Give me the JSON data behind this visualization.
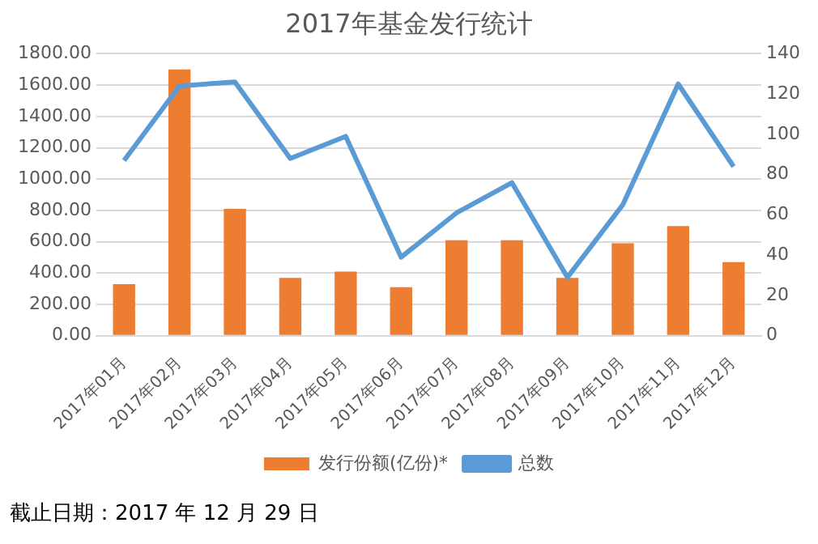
{
  "chart_data": {
    "type": "bar",
    "title": "2017年基金发行统计",
    "categories": [
      "2017年01月",
      "2017年02月",
      "2017年03月",
      "2017年04月",
      "2017年05月",
      "2017年06月",
      "2017年07月",
      "2017年08月",
      "2017年09月",
      "2017年10月",
      "2017年11月",
      "2017年12月"
    ],
    "series": [
      {
        "name": "发行份额(亿份)*",
        "color": "#ed7d31",
        "values": [
          330,
          1700,
          810,
          370,
          410,
          310,
          610,
          610,
          370,
          590,
          700,
          470
        ]
      },
      {
        "name": "总数",
        "type": "line",
        "axis": "y2",
        "color": "#5b9bd5",
        "values": [
          87,
          124,
          126,
          88,
          99,
          39,
          61,
          76,
          29,
          65,
          125,
          84
        ]
      }
    ],
    "ylim": [
      0,
      1800
    ],
    "yticks": [
      {
        "value": 0,
        "label": "0.00"
      },
      {
        "value": 200,
        "label": "200.00"
      },
      {
        "value": 400,
        "label": "400.00"
      },
      {
        "value": 600,
        "label": "600.00"
      },
      {
        "value": 800,
        "label": "800.00"
      },
      {
        "value": 1000,
        "label": "1000.00"
      },
      {
        "value": 1200,
        "label": "1200.00"
      },
      {
        "value": 1400,
        "label": "1400.00"
      },
      {
        "value": 1600,
        "label": "1600.00"
      },
      {
        "value": 1800,
        "label": "1800.00"
      }
    ],
    "y2lim": [
      0,
      140
    ],
    "y2ticks": [
      0,
      20,
      40,
      60,
      80,
      100,
      120,
      140
    ],
    "grid": "y",
    "legend": "bottom",
    "marker": "none",
    "annotations": [
      "截止日期：2017 年 12 月 29 日"
    ]
  }
}
